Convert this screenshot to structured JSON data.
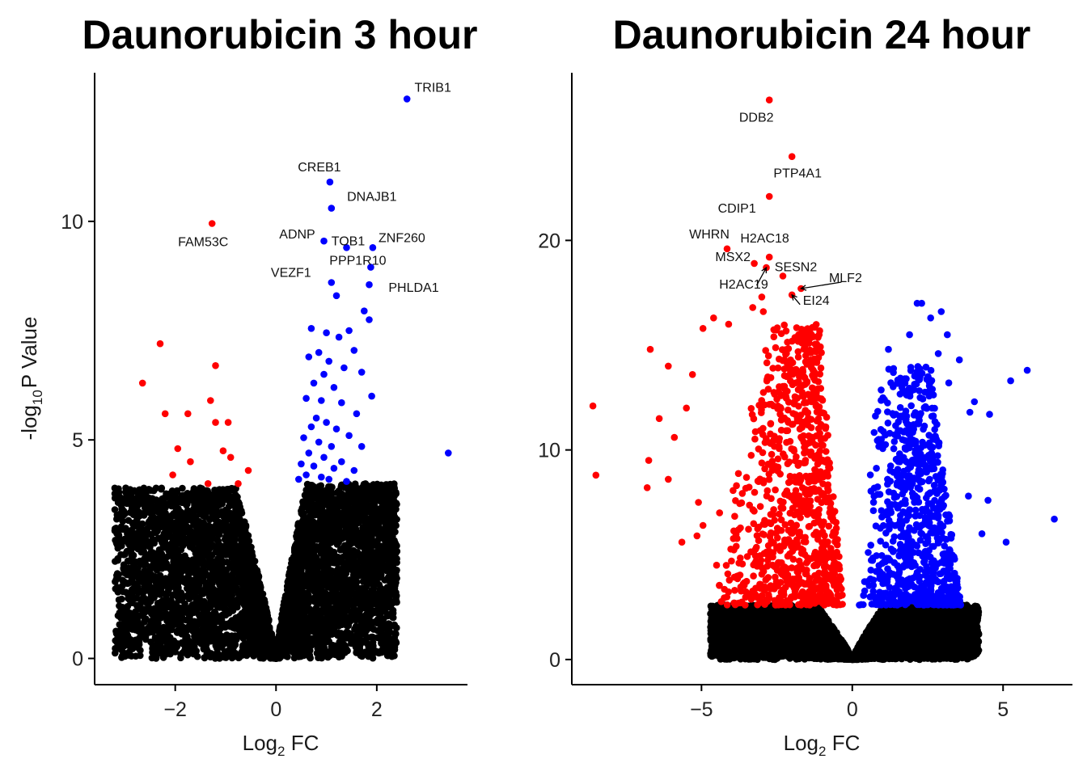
{
  "colors": {
    "up": "#0000ff",
    "down": "#ff0000",
    "ns": "#000000"
  },
  "chart_data": [
    {
      "type": "scatter",
      "title": "Daunorubicin 3 hour",
      "xlabel_main": "Log",
      "xlabel_sub": "2",
      "xlabel_tail": " FC",
      "ylabel_pre": "-log",
      "ylabel_sub": "10",
      "ylabel_tail": "P Value",
      "show_ylabel": true,
      "xlim": [
        -3.6,
        3.8
      ],
      "ylim": [
        -0.6,
        13.4
      ],
      "xticks": [
        -2,
        0,
        2
      ],
      "yticks": [
        0,
        5,
        10
      ],
      "sig_threshold": 4.0,
      "background_cloud": {
        "left": {
          "x_min": -3.2,
          "x_max": 0,
          "y_max": 3.9
        },
        "right": {
          "x_min": 0,
          "x_max": 2.4,
          "y_max": 4.0
        }
      },
      "labeled_points": [
        {
          "gene": "TRIB1",
          "x": 2.6,
          "y": 12.8,
          "dir": "up"
        },
        {
          "gene": "CREB1",
          "x": 1.07,
          "y": 10.9,
          "dir": "up"
        },
        {
          "gene": "DNAJB1",
          "x": 1.1,
          "y": 10.3,
          "dir": "up"
        },
        {
          "gene": "FAM53C",
          "x": -1.27,
          "y": 9.95,
          "dir": "down"
        },
        {
          "gene": "ADNP",
          "x": 0.95,
          "y": 9.55,
          "dir": "up"
        },
        {
          "gene": "TOB1",
          "x": 1.4,
          "y": 9.4,
          "dir": "up"
        },
        {
          "gene": "ZNF260",
          "x": 1.92,
          "y": 9.4,
          "dir": "up"
        },
        {
          "gene": "VEZF1",
          "x": 1.1,
          "y": 8.6,
          "dir": "up"
        },
        {
          "gene": "PPP1R10",
          "x": 1.88,
          "y": 8.95,
          "dir": "up"
        },
        {
          "gene": "PHLDA1",
          "x": 1.85,
          "y": 8.55,
          "dir": "up"
        }
      ],
      "up_points": [
        [
          3.42,
          4.7
        ],
        [
          1.2,
          8.3
        ],
        [
          1.75,
          7.95
        ],
        [
          1.85,
          7.75
        ],
        [
          0.7,
          7.55
        ],
        [
          1.0,
          7.45
        ],
        [
          1.45,
          7.5
        ],
        [
          1.25,
          7.35
        ],
        [
          0.85,
          7.0
        ],
        [
          1.55,
          7.05
        ],
        [
          0.65,
          6.9
        ],
        [
          1.05,
          6.8
        ],
        [
          1.35,
          6.65
        ],
        [
          0.95,
          6.5
        ],
        [
          1.7,
          6.55
        ],
        [
          0.75,
          6.3
        ],
        [
          1.15,
          6.2
        ],
        [
          1.9,
          6.0
        ],
        [
          0.6,
          5.95
        ],
        [
          0.9,
          5.9
        ],
        [
          1.3,
          5.85
        ],
        [
          1.6,
          5.6
        ],
        [
          0.8,
          5.5
        ],
        [
          1.0,
          5.4
        ],
        [
          0.7,
          5.3
        ],
        [
          1.2,
          5.25
        ],
        [
          1.45,
          5.1
        ],
        [
          0.55,
          5.05
        ],
        [
          0.85,
          4.95
        ],
        [
          1.1,
          4.85
        ],
        [
          1.7,
          4.85
        ],
        [
          0.65,
          4.7
        ],
        [
          0.95,
          4.6
        ],
        [
          1.3,
          4.5
        ],
        [
          0.5,
          4.45
        ],
        [
          0.75,
          4.4
        ],
        [
          1.15,
          4.35
        ],
        [
          1.55,
          4.3
        ],
        [
          0.6,
          4.2
        ],
        [
          0.9,
          4.15
        ],
        [
          1.05,
          4.1
        ],
        [
          0.45,
          4.1
        ],
        [
          1.4,
          4.05
        ]
      ],
      "down_points": [
        [
          -2.3,
          7.2
        ],
        [
          -2.65,
          6.3
        ],
        [
          -1.2,
          6.7
        ],
        [
          -1.3,
          5.9
        ],
        [
          -2.2,
          5.6
        ],
        [
          -1.75,
          5.6
        ],
        [
          -1.2,
          5.4
        ],
        [
          -0.95,
          5.4
        ],
        [
          -1.95,
          4.8
        ],
        [
          -1.05,
          4.75
        ],
        [
          -0.9,
          4.6
        ],
        [
          -1.7,
          4.5
        ],
        [
          -0.55,
          4.3
        ],
        [
          -2.05,
          4.2
        ],
        [
          -1.35,
          4.0
        ],
        [
          -0.75,
          4.0
        ]
      ]
    },
    {
      "type": "scatter",
      "title": "Daunorubicin 24 hour",
      "xlabel_main": "Log",
      "xlabel_sub": "2",
      "xlabel_tail": " FC",
      "show_ylabel": false,
      "xlim": [
        -9.3,
        7.3
      ],
      "ylim": [
        -1.2,
        28.0
      ],
      "xticks": [
        -5,
        0,
        5
      ],
      "yticks": [
        0,
        10,
        20
      ],
      "sig_threshold": 2.6,
      "background_cloud": {
        "left": {
          "x_min": -4.7,
          "x_max": 0,
          "y_max": 2.6
        },
        "right": {
          "x_min": 0,
          "x_max": 4.2,
          "y_max": 2.6
        }
      },
      "labeled_points": [
        {
          "gene": "DDB2",
          "x": -2.75,
          "y": 26.7,
          "dir": "down"
        },
        {
          "gene": "PTP4A1",
          "x": -2.0,
          "y": 24.0,
          "dir": "down"
        },
        {
          "gene": "CDIP1",
          "x": -2.75,
          "y": 22.1,
          "dir": "down"
        },
        {
          "gene": "WHRN",
          "x": -4.15,
          "y": 19.6,
          "dir": "down"
        },
        {
          "gene": "H2AC18",
          "x": -3.25,
          "y": 18.9,
          "dir": "down"
        },
        {
          "gene": "MSX2",
          "x": -2.75,
          "y": 19.2,
          "dir": "down"
        },
        {
          "gene": "SESN2",
          "x": -2.3,
          "y": 18.3,
          "dir": "down"
        },
        {
          "gene": "H2AC19",
          "x": -2.85,
          "y": 18.7,
          "dir": "down"
        },
        {
          "gene": "MLF2",
          "x": -1.7,
          "y": 17.7,
          "dir": "down"
        },
        {
          "gene": "EI24",
          "x": -2.0,
          "y": 17.4,
          "dir": "down"
        }
      ],
      "down_points": [
        [
          -8.6,
          12.1
        ],
        [
          -8.5,
          8.8
        ],
        [
          -6.7,
          14.8
        ],
        [
          -6.1,
          14.0
        ],
        [
          -6.4,
          11.5
        ],
        [
          -5.9,
          10.6
        ],
        [
          -6.75,
          9.5
        ],
        [
          -6.1,
          8.6
        ],
        [
          -5.3,
          13.6
        ],
        [
          -4.95,
          15.8
        ],
        [
          -4.6,
          16.3
        ],
        [
          -5.5,
          12.0
        ],
        [
          -5.65,
          5.6
        ],
        [
          -5.15,
          5.9
        ],
        [
          -4.95,
          6.4
        ],
        [
          -6.8,
          8.2
        ],
        [
          -5.1,
          7.5
        ],
        [
          -4.4,
          7.0
        ],
        [
          -4.5,
          4.5
        ],
        [
          -3.9,
          3.3
        ],
        [
          -4.1,
          16.0
        ],
        [
          -3.3,
          16.8
        ],
        [
          -1.1,
          15.5
        ],
        [
          -3.0,
          17.3
        ],
        [
          -2.6,
          15.4
        ],
        [
          -2.95,
          16.6
        ]
      ],
      "down_cloud": {
        "x_min": -4.7,
        "x_max": -0.2,
        "y_min": 2.6,
        "y_max": 16.0,
        "count": 900
      },
      "up_points": [
        [
          5.8,
          13.8
        ],
        [
          5.25,
          13.3
        ],
        [
          6.7,
          6.7
        ],
        [
          5.1,
          5.6
        ],
        [
          4.55,
          11.7
        ],
        [
          4.5,
          7.6
        ],
        [
          4.3,
          6.0
        ],
        [
          3.85,
          7.8
        ],
        [
          2.15,
          17.0
        ],
        [
          2.3,
          17.0
        ],
        [
          2.95,
          16.6
        ],
        [
          2.6,
          16.3
        ],
        [
          1.9,
          15.5
        ],
        [
          3.15,
          15.5
        ],
        [
          1.2,
          14.8
        ],
        [
          2.85,
          14.6
        ],
        [
          3.55,
          14.3
        ],
        [
          3.2,
          13.2
        ],
        [
          3.9,
          11.8
        ],
        [
          4.05,
          12.3
        ]
      ],
      "up_cloud": {
        "x_min": 0.2,
        "x_max": 3.6,
        "y_min": 2.6,
        "y_max": 14.0,
        "count": 850
      }
    }
  ]
}
